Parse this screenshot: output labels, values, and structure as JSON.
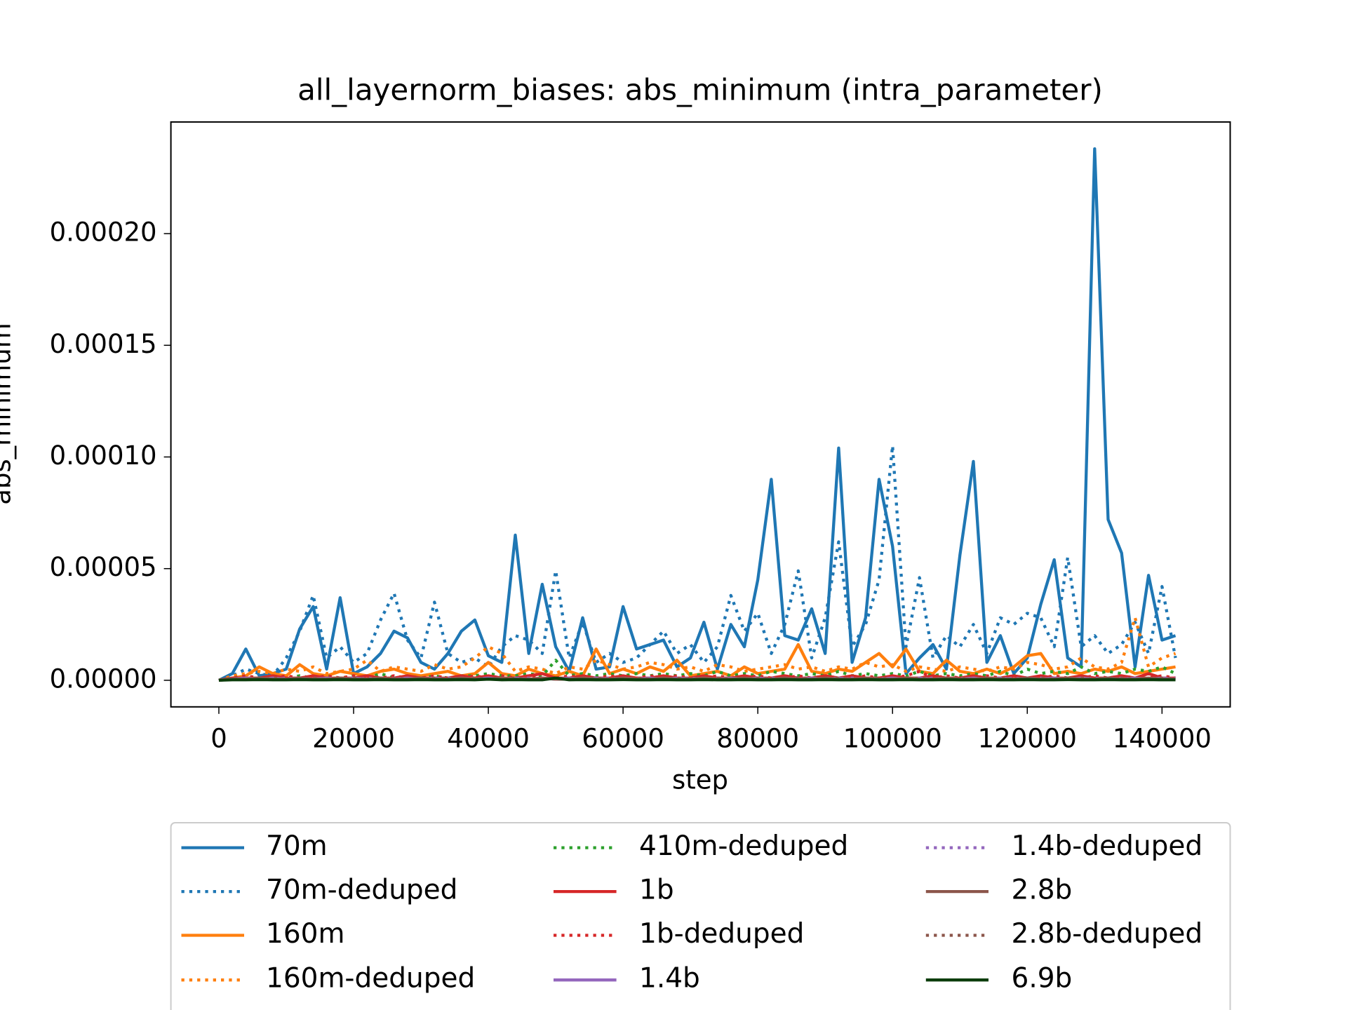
{
  "chart_data": {
    "type": "line",
    "title": "all_layernorm_biases: abs_minimum (intra_parameter)",
    "xlabel": "step",
    "ylabel": "abs_minimum",
    "legend_position": "below",
    "grid": false,
    "xlim": [
      -7120,
      150120
    ],
    "ylim": [
      -1.19e-05,
      0.00025
    ],
    "xticks": [
      0,
      20000,
      40000,
      60000,
      80000,
      100000,
      120000,
      140000
    ],
    "yticks": [
      {
        "value": 0,
        "label": "0.00000"
      },
      {
        "value": 5e-05,
        "label": "0.00005"
      },
      {
        "value": 0.0001,
        "label": "0.00010"
      },
      {
        "value": 0.00015,
        "label": "0.00015"
      },
      {
        "value": 0.0002,
        "label": "0.00020"
      }
    ],
    "x": [
      0,
      2000,
      4000,
      6000,
      8000,
      10000,
      12000,
      14000,
      16000,
      18000,
      20000,
      22000,
      24000,
      26000,
      28000,
      30000,
      32000,
      34000,
      36000,
      38000,
      40000,
      42000,
      44000,
      46000,
      48000,
      50000,
      52000,
      54000,
      56000,
      58000,
      60000,
      62000,
      64000,
      66000,
      68000,
      70000,
      72000,
      74000,
      76000,
      78000,
      80000,
      82000,
      84000,
      86000,
      88000,
      90000,
      92000,
      94000,
      96000,
      98000,
      100000,
      102000,
      104000,
      106000,
      108000,
      110000,
      112000,
      114000,
      116000,
      118000,
      120000,
      122000,
      124000,
      126000,
      128000,
      130000,
      132000,
      134000,
      136000,
      138000,
      140000,
      142000
    ],
    "series": [
      {
        "name": "70m",
        "color": "#1f77b4",
        "style": "solid",
        "values": [
          0,
          3e-06,
          1.4e-05,
          2e-06,
          3e-06,
          5e-06,
          2.3e-05,
          3.3e-05,
          5e-06,
          3.7e-05,
          3e-06,
          6e-06,
          1.2e-05,
          2.2e-05,
          1.9e-05,
          8e-06,
          5e-06,
          1.2e-05,
          2.2e-05,
          2.7e-05,
          1.1e-05,
          8e-06,
          6.5e-05,
          1.2e-05,
          4.3e-05,
          1.5e-05,
          4e-06,
          2.8e-05,
          5e-06,
          6e-06,
          3.3e-05,
          1.4e-05,
          1.6e-05,
          1.8e-05,
          6e-06,
          1e-05,
          2.6e-05,
          5e-06,
          2.5e-05,
          1.5e-05,
          4.5e-05,
          9e-05,
          2e-05,
          1.8e-05,
          3.2e-05,
          1.2e-05,
          0.000104,
          8e-06,
          2.8e-05,
          9e-05,
          6e-05,
          3e-06,
          1e-05,
          1.6e-05,
          5e-06,
          5.6e-05,
          9.8e-05,
          8e-06,
          2e-05,
          3e-06,
          1e-05,
          3.4e-05,
          5.4e-05,
          1e-05,
          6e-06,
          0.000238,
          7.2e-05,
          5.7e-05,
          6e-06,
          4.7e-05,
          1.8e-05,
          2e-05
        ]
      },
      {
        "name": "70m-deduped",
        "color": "#1f77b4",
        "style": "dotted",
        "values": [
          0,
          2e-06,
          5e-06,
          3e-06,
          2e-06,
          1e-05,
          2.2e-05,
          3.8e-05,
          1e-05,
          1.5e-05,
          8e-06,
          1.2e-05,
          2.7e-05,
          3.9e-05,
          1.8e-05,
          1e-05,
          3.5e-05,
          1.2e-05,
          8e-06,
          1e-05,
          6e-06,
          1.5e-05,
          2e-05,
          1.8e-05,
          1.2e-05,
          4.9e-05,
          1e-05,
          2.6e-05,
          8e-06,
          1.2e-05,
          8e-06,
          1e-05,
          1.6e-05,
          2.2e-05,
          1.2e-05,
          1.6e-05,
          8e-06,
          1.5e-05,
          3.8e-05,
          2.2e-05,
          3e-05,
          1.2e-05,
          2.5e-05,
          4.9e-05,
          1e-05,
          2.8e-05,
          6.2e-05,
          1.5e-05,
          2.5e-05,
          4.5e-05,
          0.000105,
          1.5e-05,
          4.6e-05,
          1e-05,
          2e-05,
          1.5e-05,
          2.5e-05,
          1.2e-05,
          2.8e-05,
          2.5e-05,
          3e-05,
          2.8e-05,
          1.5e-05,
          5.5e-05,
          1.5e-05,
          2e-05,
          1.2e-05,
          1.6e-05,
          2.6e-05,
          1.2e-05,
          4.2e-05,
          1e-05
        ]
      },
      {
        "name": "160m",
        "color": "#ff7f0e",
        "style": "solid",
        "values": [
          0,
          1e-06,
          2e-06,
          6e-06,
          3e-06,
          2e-06,
          7e-06,
          3e-06,
          2e-06,
          4e-06,
          3e-06,
          2e-06,
          4e-06,
          5e-06,
          3e-06,
          2e-06,
          3e-06,
          4e-06,
          2e-06,
          3e-06,
          8e-06,
          3e-06,
          2e-06,
          5e-06,
          3e-06,
          2e-06,
          4e-06,
          2e-06,
          1.4e-05,
          3e-06,
          5e-06,
          3e-06,
          6e-06,
          4e-06,
          9e-06,
          2e-06,
          3e-06,
          4e-06,
          2e-06,
          6e-06,
          3e-06,
          4e-06,
          5e-06,
          1.6e-05,
          4e-06,
          3e-06,
          5e-06,
          4e-06,
          8e-06,
          1.2e-05,
          6e-06,
          1.4e-05,
          4e-06,
          3e-06,
          9e-06,
          4e-06,
          3e-06,
          5e-06,
          3e-06,
          6e-06,
          1.1e-05,
          1.2e-05,
          3e-06,
          4e-06,
          3e-06,
          5e-06,
          4e-06,
          6e-06,
          3e-06,
          4e-06,
          5e-06,
          6e-06
        ]
      },
      {
        "name": "160m-deduped",
        "color": "#ff7f0e",
        "style": "dotted",
        "values": [
          0,
          2e-06,
          3e-06,
          4e-06,
          3e-06,
          5e-06,
          4e-06,
          6e-06,
          3e-06,
          4e-06,
          5e-06,
          9e-06,
          4e-06,
          6e-06,
          5e-06,
          4e-06,
          7e-06,
          5e-06,
          6e-06,
          1e-05,
          1.5e-05,
          1.2e-05,
          4e-06,
          6e-06,
          5e-06,
          3e-06,
          6e-06,
          5e-06,
          9e-06,
          7e-06,
          5e-06,
          6e-06,
          8e-06,
          7e-06,
          5e-06,
          6e-06,
          4e-06,
          7e-06,
          6e-06,
          4e-06,
          5e-06,
          6e-06,
          7e-06,
          5e-06,
          6e-06,
          4e-06,
          6e-06,
          5e-06,
          8e-06,
          6e-06,
          7e-06,
          4e-06,
          6e-06,
          5e-06,
          4e-06,
          6e-06,
          5e-06,
          4e-06,
          6e-06,
          5e-06,
          8e-06,
          7e-06,
          5e-06,
          6e-06,
          1e-05,
          6e-06,
          5e-06,
          8e-06,
          2.8e-05,
          6e-06,
          1e-05,
          1.2e-05
        ]
      },
      {
        "name": "410m-deduped",
        "color": "#2ca02c",
        "style": "dotted",
        "values": [
          0,
          1e-06,
          2e-06,
          1e-06,
          2e-06,
          1e-06,
          2e-06,
          1e-06,
          2e-06,
          1e-06,
          2e-06,
          1e-06,
          3e-06,
          1e-06,
          2e-06,
          1e-06,
          2e-06,
          1e-06,
          2e-06,
          2e-06,
          3e-06,
          2e-06,
          2e-06,
          3e-06,
          2e-06,
          9e-06,
          2e-06,
          3e-06,
          2e-06,
          3e-06,
          2e-06,
          3e-06,
          2e-06,
          3e-06,
          2e-06,
          3e-06,
          2e-06,
          4e-06,
          2e-06,
          3e-06,
          2e-06,
          4e-06,
          3e-06,
          2e-06,
          3e-06,
          2e-06,
          4e-06,
          2e-06,
          3e-06,
          2e-06,
          3e-06,
          2e-06,
          4e-06,
          2e-06,
          3e-06,
          2e-06,
          3e-06,
          2e-06,
          4e-06,
          2e-06,
          5e-06,
          3e-06,
          4e-06,
          3e-06,
          6e-06,
          3e-06,
          4e-06,
          3e-06,
          5e-06,
          4e-06,
          6e-06,
          3e-06
        ]
      },
      {
        "name": "1b",
        "color": "#d62728",
        "style": "solid",
        "values": [
          0,
          1e-06,
          1e-06,
          1e-06,
          2e-06,
          1e-06,
          1e-06,
          2e-06,
          1e-06,
          1e-06,
          1e-06,
          2e-06,
          1e-06,
          1e-06,
          2e-06,
          1e-06,
          1e-06,
          1e-06,
          2e-06,
          1e-06,
          2e-06,
          1e-06,
          1e-06,
          2e-06,
          3e-06,
          1e-06,
          1e-06,
          2e-06,
          1e-06,
          1e-06,
          2e-06,
          1e-06,
          1e-06,
          2e-06,
          1e-06,
          1e-06,
          2e-06,
          1e-06,
          1e-06,
          2e-06,
          1e-06,
          1e-06,
          2e-06,
          1e-06,
          1e-06,
          2e-06,
          1e-06,
          2e-06,
          1e-06,
          1e-06,
          2e-06,
          1e-06,
          1e-06,
          2e-06,
          1e-06,
          1e-06,
          2e-06,
          1e-06,
          1e-06,
          2e-06,
          1e-06,
          2e-06,
          1e-06,
          1e-06,
          2e-06,
          1e-06,
          1e-06,
          2e-06,
          1e-06,
          3e-06,
          1e-06,
          1e-06
        ]
      },
      {
        "name": "1b-deduped",
        "color": "#d62728",
        "style": "dotted",
        "values": [
          0,
          1e-06,
          2e-06,
          1e-06,
          1e-06,
          2e-06,
          1e-06,
          1e-06,
          2e-06,
          1e-06,
          2e-06,
          1e-06,
          1e-06,
          2e-06,
          1e-06,
          1e-06,
          2e-06,
          1e-06,
          1e-06,
          2e-06,
          1e-06,
          2e-06,
          1e-06,
          2e-06,
          1e-06,
          1e-06,
          2e-06,
          1e-06,
          1e-06,
          2e-06,
          1e-06,
          1e-06,
          2e-06,
          1e-06,
          2e-06,
          1e-06,
          1e-06,
          2e-06,
          1e-06,
          1e-06,
          2e-06,
          1e-06,
          1e-06,
          2e-06,
          1e-06,
          2e-06,
          1e-06,
          1e-06,
          2e-06,
          1e-06,
          1e-06,
          2e-06,
          4e-06,
          1e-06,
          2e-06,
          1e-06,
          1e-06,
          2e-06,
          1e-06,
          2e-06,
          1e-06,
          1e-06,
          2e-06,
          1e-06,
          1e-06,
          2e-06,
          1e-06,
          2e-06,
          1e-06,
          1e-06,
          2e-06,
          1e-06
        ]
      },
      {
        "name": "1.4b",
        "color": "#9467bd",
        "style": "solid",
        "values": [
          0,
          5e-07,
          1e-06,
          5e-07,
          1e-06,
          5e-07,
          1e-06,
          5e-07,
          1e-06,
          5e-07,
          1e-06,
          5e-07,
          1e-06,
          5e-07,
          1e-06,
          5e-07,
          1e-06,
          5e-07,
          1e-06,
          5e-07,
          1e-06,
          5e-07,
          1e-06,
          5e-07,
          1e-06,
          5e-07,
          1e-06,
          5e-07,
          1e-06,
          5e-07,
          1e-06,
          5e-07,
          1e-06,
          5e-07,
          1e-06,
          5e-07,
          1e-06,
          5e-07,
          1e-06,
          5e-07,
          1e-06,
          5e-07,
          1e-06,
          5e-07,
          1e-06,
          5e-07,
          1e-06,
          5e-07,
          1e-06,
          5e-07,
          1e-06,
          5e-07,
          1e-06,
          5e-07,
          1e-06,
          5e-07,
          1e-06,
          5e-07,
          1e-06,
          5e-07,
          1e-06,
          5e-07,
          1e-06,
          5e-07,
          1e-06,
          5e-07,
          1e-06,
          5e-07,
          1e-06,
          5e-07,
          1e-06,
          5e-07
        ]
      },
      {
        "name": "1.4b-deduped",
        "color": "#9467bd",
        "style": "dotted",
        "values": [
          0,
          1e-06,
          5e-07,
          1e-06,
          5e-07,
          1e-06,
          5e-07,
          1e-06,
          5e-07,
          1e-06,
          5e-07,
          1e-06,
          5e-07,
          1e-06,
          5e-07,
          1e-06,
          5e-07,
          1e-06,
          5e-07,
          1e-06,
          5e-07,
          1e-06,
          5e-07,
          1e-06,
          5e-07,
          1e-06,
          5e-07,
          1e-06,
          5e-07,
          1e-06,
          5e-07,
          1e-06,
          5e-07,
          1e-06,
          5e-07,
          1e-06,
          5e-07,
          1e-06,
          5e-07,
          1e-06,
          5e-07,
          1e-06,
          5e-07,
          1e-06,
          5e-07,
          1e-06,
          5e-07,
          1e-06,
          5e-07,
          1e-06,
          5e-07,
          1e-06,
          5e-07,
          1e-06,
          5e-07,
          1e-06,
          5e-07,
          1e-06,
          5e-07,
          1e-06,
          5e-07,
          1e-06,
          5e-07,
          1e-06,
          5e-07,
          1e-06,
          5e-07,
          1e-06,
          5e-07,
          1e-06,
          5e-07,
          1e-06
        ]
      },
      {
        "name": "2.8b",
        "color": "#8c564b",
        "style": "solid",
        "values": [
          0,
          5e-07,
          5e-07,
          1e-06,
          5e-07,
          5e-07,
          1e-06,
          5e-07,
          5e-07,
          1e-06,
          5e-07,
          5e-07,
          1e-06,
          5e-07,
          5e-07,
          1e-06,
          5e-07,
          5e-07,
          1e-06,
          5e-07,
          5e-07,
          1e-06,
          5e-07,
          5e-07,
          1e-06,
          5e-07,
          5e-07,
          1e-06,
          5e-07,
          5e-07,
          1e-06,
          5e-07,
          5e-07,
          1e-06,
          5e-07,
          5e-07,
          1e-06,
          5e-07,
          5e-07,
          1e-06,
          5e-07,
          5e-07,
          1e-06,
          5e-07,
          5e-07,
          1e-06,
          5e-07,
          5e-07,
          1e-06,
          5e-07,
          5e-07,
          1e-06,
          5e-07,
          5e-07,
          1e-06,
          5e-07,
          5e-07,
          1e-06,
          5e-07,
          5e-07,
          1e-06,
          5e-07,
          5e-07,
          1e-06,
          5e-07,
          5e-07,
          1e-06,
          5e-07,
          5e-07,
          1e-06,
          5e-07,
          5e-07
        ]
      },
      {
        "name": "2.8b-deduped",
        "color": "#8c564b",
        "style": "dotted",
        "values": [
          0,
          1e-06,
          5e-07,
          5e-07,
          1e-06,
          5e-07,
          5e-07,
          1e-06,
          5e-07,
          5e-07,
          1e-06,
          5e-07,
          5e-07,
          1e-06,
          5e-07,
          5e-07,
          1e-06,
          5e-07,
          5e-07,
          1e-06,
          5e-07,
          5e-07,
          1e-06,
          5e-07,
          5e-07,
          1e-06,
          5e-07,
          5e-07,
          1e-06,
          5e-07,
          5e-07,
          1e-06,
          5e-07,
          5e-07,
          1e-06,
          5e-07,
          5e-07,
          1e-06,
          5e-07,
          5e-07,
          1e-06,
          5e-07,
          5e-07,
          1e-06,
          5e-07,
          5e-07,
          1e-06,
          5e-07,
          5e-07,
          1e-06,
          5e-07,
          5e-07,
          1e-06,
          5e-07,
          5e-07,
          1e-06,
          5e-07,
          5e-07,
          1e-06,
          5e-07,
          5e-07,
          1e-06,
          5e-07,
          5e-07,
          1e-06,
          5e-07,
          5e-07,
          1e-06,
          5e-07,
          5e-07,
          1e-06,
          5e-07
        ]
      },
      {
        "name": "6.9b",
        "color": "#0b3d0b",
        "style": "solid",
        "values": [
          0,
          2e-07,
          2e-07,
          3e-07,
          2e-07,
          2e-07,
          3e-07,
          2e-07,
          2e-07,
          3e-07,
          2e-07,
          2e-07,
          3e-07,
          2e-07,
          2e-07,
          3e-07,
          2e-07,
          2e-07,
          3e-07,
          2e-07,
          5e-07,
          2e-07,
          3e-07,
          2e-07,
          2e-07,
          1e-06,
          2e-07,
          3e-07,
          2e-07,
          2e-07,
          3e-07,
          2e-07,
          2e-07,
          3e-07,
          2e-07,
          2e-07,
          3e-07,
          2e-07,
          2e-07,
          3e-07,
          2e-07,
          2e-07,
          3e-07,
          2e-07,
          2e-07,
          3e-07,
          2e-07,
          2e-07,
          3e-07,
          2e-07,
          2e-07,
          3e-07,
          2e-07,
          2e-07,
          3e-07,
          2e-07,
          2e-07,
          3e-07,
          2e-07,
          2e-07,
          3e-07,
          2e-07,
          2e-07,
          3e-07,
          2e-07,
          2e-07,
          3e-07,
          2e-07,
          2e-07,
          3e-07,
          2e-07,
          2e-07
        ]
      }
    ]
  }
}
